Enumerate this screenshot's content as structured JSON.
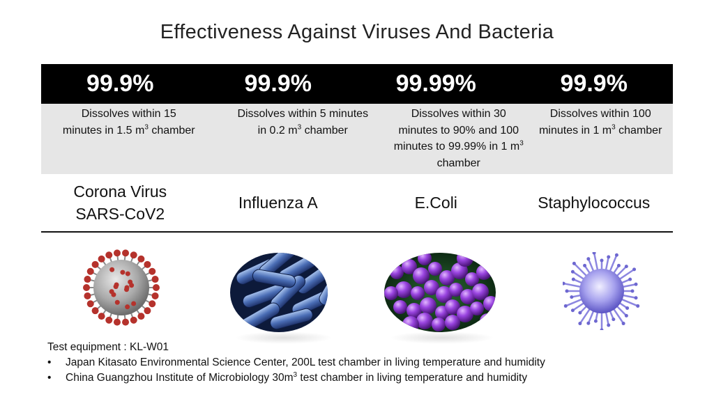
{
  "title": "Effectiveness Against Viruses And Bacteria",
  "columns": [
    {
      "percent": "99.9%",
      "desc_pre": "Dissolves within 15 minutes in 1.5 m",
      "desc_sup": "3",
      "desc_post": " chamber",
      "name_line1": "Corona Virus",
      "name_line2": "SARS-CoV2",
      "image": "coronavirus-image"
    },
    {
      "percent": "99.9%",
      "desc_pre": "Dissolves within 5 minutes in 0.2 m",
      "desc_sup": "3",
      "desc_post": " chamber",
      "name_line1": "Influenza A",
      "name_line2": "",
      "image": "rod-bacteria-image"
    },
    {
      "percent": "99.99%",
      "desc_pre": "Dissolves within 30 minutes to 90% and 100 minutes to 99.99% in 1 m",
      "desc_sup": "3",
      "desc_post": " chamber",
      "name_line1": "E.Coli",
      "name_line2": "",
      "image": "cocci-bacteria-image"
    },
    {
      "percent": "99.9%",
      "desc_pre": "Dissolves within 100 minutes in 1 m",
      "desc_sup": "3",
      "desc_post": " chamber",
      "name_line1": "Staphylococcus",
      "name_line2": "",
      "image": "purple-virus-image"
    }
  ],
  "footer": {
    "equipment": "Test equipment : KL-W01",
    "bullet_symbol": "•",
    "bullet1": "Japan Kitasato Environmental Science Center, 200L test chamber in living temperature and humidity",
    "bullet2_pre": "China Guangzhou Institute of Microbiology 30m",
    "bullet2_sup": "3",
    "bullet2_post": " test chamber in living temperature and humidity"
  },
  "colors": {
    "header_bg": "#000000",
    "desc_bg": "#e6e6e6",
    "corona": "#b5322c",
    "bacteria_blue": "#3a5aa0",
    "cocci_purple": "#8a3ccf",
    "virus_lavender": "#8c86e0"
  }
}
